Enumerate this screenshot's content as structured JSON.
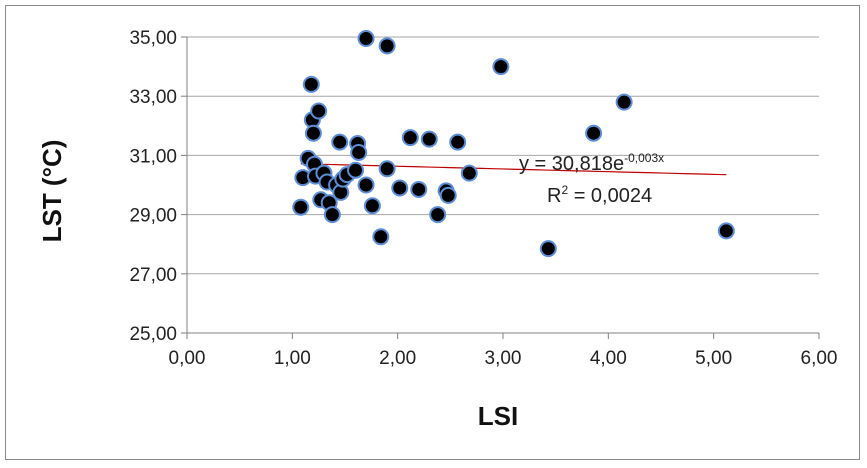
{
  "chart_data": {
    "type": "scatter",
    "title": "",
    "xlabel": "LSI",
    "ylabel": "LST (°C)",
    "xlim": [
      0,
      6
    ],
    "ylim": [
      25,
      35
    ],
    "x_ticks": [
      "0,00",
      "1,00",
      "2,00",
      "3,00",
      "4,00",
      "5,00",
      "6,00"
    ],
    "y_ticks": [
      "25,00",
      "27,00",
      "29,00",
      "31,00",
      "33,00",
      "35,00"
    ],
    "grid": "horizontal",
    "points": [
      {
        "x": 1.08,
        "y": 29.25
      },
      {
        "x": 1.1,
        "y": 30.25
      },
      {
        "x": 1.15,
        "y": 30.9
      },
      {
        "x": 1.18,
        "y": 33.4
      },
      {
        "x": 1.19,
        "y": 32.2
      },
      {
        "x": 1.2,
        "y": 31.75
      },
      {
        "x": 1.21,
        "y": 30.7
      },
      {
        "x": 1.22,
        "y": 30.3
      },
      {
        "x": 1.25,
        "y": 32.5
      },
      {
        "x": 1.27,
        "y": 29.5
      },
      {
        "x": 1.3,
        "y": 30.4
      },
      {
        "x": 1.33,
        "y": 30.1
      },
      {
        "x": 1.35,
        "y": 29.4
      },
      {
        "x": 1.38,
        "y": 29.0
      },
      {
        "x": 1.42,
        "y": 30.0
      },
      {
        "x": 1.45,
        "y": 31.45
      },
      {
        "x": 1.46,
        "y": 29.75
      },
      {
        "x": 1.48,
        "y": 30.2
      },
      {
        "x": 1.52,
        "y": 30.35
      },
      {
        "x": 1.6,
        "y": 30.5
      },
      {
        "x": 1.62,
        "y": 31.4
      },
      {
        "x": 1.63,
        "y": 31.1
      },
      {
        "x": 1.7,
        "y": 34.95
      },
      {
        "x": 1.7,
        "y": 30.0
      },
      {
        "x": 1.76,
        "y": 29.3
      },
      {
        "x": 1.84,
        "y": 28.25
      },
      {
        "x": 1.9,
        "y": 34.7
      },
      {
        "x": 1.9,
        "y": 30.55
      },
      {
        "x": 2.02,
        "y": 29.9
      },
      {
        "x": 2.12,
        "y": 31.6
      },
      {
        "x": 2.2,
        "y": 29.85
      },
      {
        "x": 2.3,
        "y": 31.55
      },
      {
        "x": 2.38,
        "y": 29.0
      },
      {
        "x": 2.46,
        "y": 29.8
      },
      {
        "x": 2.48,
        "y": 29.65
      },
      {
        "x": 2.57,
        "y": 31.45
      },
      {
        "x": 2.68,
        "y": 30.4
      },
      {
        "x": 2.98,
        "y": 34.0
      },
      {
        "x": 3.43,
        "y": 27.85
      },
      {
        "x": 3.86,
        "y": 31.75
      },
      {
        "x": 4.15,
        "y": 32.8
      },
      {
        "x": 5.12,
        "y": 28.45
      }
    ],
    "trendline": {
      "type": "exponential",
      "a": 30.818,
      "b": -0.003,
      "x_range": [
        1.08,
        5.12
      ],
      "color": "#c00000"
    },
    "annotations": {
      "equation_prefix": "y = 30,818e",
      "equation_exponent": "-0,003x",
      "r2_prefix": "R",
      "r2_sup": "2",
      "r2_suffix": " = 0,0024"
    },
    "colors": {
      "marker_fill": "#000000",
      "marker_stroke": "#5b8ed6",
      "grid": "#a6a6a6",
      "axis": "#808080"
    }
  }
}
